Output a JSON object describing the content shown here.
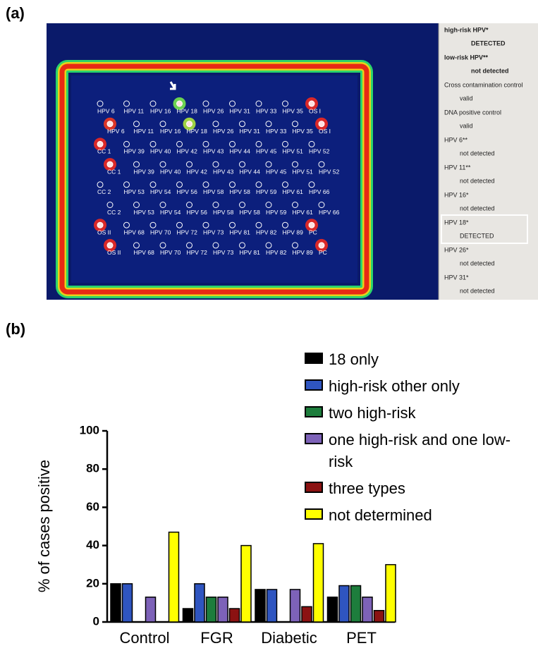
{
  "panel_a": {
    "label": "(a)",
    "array_rows": [
      [
        "HPV 6",
        "HPV 11",
        "HPV 16",
        "HPV 18",
        "HPV 26",
        "HPV 31",
        "HPV 33",
        "HPV 35",
        "OS I"
      ],
      [
        "HPV 6",
        "HPV 11",
        "HPV 16",
        "HPV 18",
        "HPV 26",
        "HPV 31",
        "HPV 33",
        "HPV 35",
        "OS I"
      ],
      [
        "CC 1",
        "HPV 39",
        "HPV 40",
        "HPV 42",
        "HPV 43",
        "HPV 44",
        "HPV 45",
        "HPV 51",
        "HPV 52"
      ],
      [
        "CC 1",
        "HPV 39",
        "HPV 40",
        "HPV 42",
        "HPV 43",
        "HPV 44",
        "HPV 45",
        "HPV 51",
        "HPV 52"
      ],
      [
        "CC 2",
        "HPV 53",
        "HPV 54",
        "HPV 56",
        "HPV 58",
        "HPV 58",
        "HPV 59",
        "HPV 61",
        "HPV 66"
      ],
      [
        "CC 2",
        "HPV 53",
        "HPV 54",
        "HPV 56",
        "HPV 58",
        "HPV 58",
        "HPV 59",
        "HPV 61",
        "HPV 66"
      ],
      [
        "OS II",
        "HPV 68",
        "HPV 70",
        "HPV 72",
        "HPV 73",
        "HPV 81",
        "HPV 82",
        "HPV 89",
        "PC"
      ],
      [
        "OS II",
        "HPV 68",
        "HPV 70",
        "HPV 72",
        "HPV 73",
        "HPV 81",
        "HPV 82",
        "HPV 89",
        "PC"
      ]
    ],
    "report": [
      {
        "name": "high-risk HPV*",
        "result": "DETECTED"
      },
      {
        "name": "low-risk HPV**",
        "result": "not detected"
      },
      {
        "name": "Cross contamination control",
        "result": "valid"
      },
      {
        "name": "DNA positive control",
        "result": "valid"
      },
      {
        "name": "HPV 6**",
        "result": "not detected"
      },
      {
        "name": "HPV 11**",
        "result": "not detected"
      },
      {
        "name": "HPV 16*",
        "result": "not detected"
      },
      {
        "name": "HPV 18*",
        "result": "DETECTED"
      },
      {
        "name": "HPV 26*",
        "result": "not detected"
      },
      {
        "name": "HPV 31*",
        "result": "not detected"
      }
    ]
  },
  "panel_b": {
    "label": "(b)"
  },
  "chart_data": {
    "type": "bar",
    "y_label": "% of cases positive",
    "categories": [
      "Control",
      "FGR",
      "Diabetic",
      "PET"
    ],
    "series": [
      {
        "name": "18 only",
        "color": "#000000",
        "values": [
          20,
          7,
          17,
          13
        ]
      },
      {
        "name": "high-risk other only",
        "color": "#2f55c0",
        "values": [
          20,
          20,
          17,
          19
        ]
      },
      {
        "name": "two high-risk",
        "color": "#1d7d3c",
        "values": [
          0,
          13,
          0,
          19
        ]
      },
      {
        "name": "one high-risk and one low-risk",
        "color": "#7d62b8",
        "values": [
          13,
          13,
          17,
          13
        ]
      },
      {
        "name": "three types",
        "color": "#8b1212",
        "values": [
          0,
          7,
          8,
          6
        ]
      },
      {
        "name": "not determined",
        "color": "#ffff00",
        "values": [
          47,
          40,
          41,
          30
        ]
      }
    ],
    "ylim": [
      0,
      100
    ],
    "yticks": [
      0,
      20,
      40,
      60,
      80,
      100
    ],
    "legend": "top-right",
    "grid": false
  }
}
